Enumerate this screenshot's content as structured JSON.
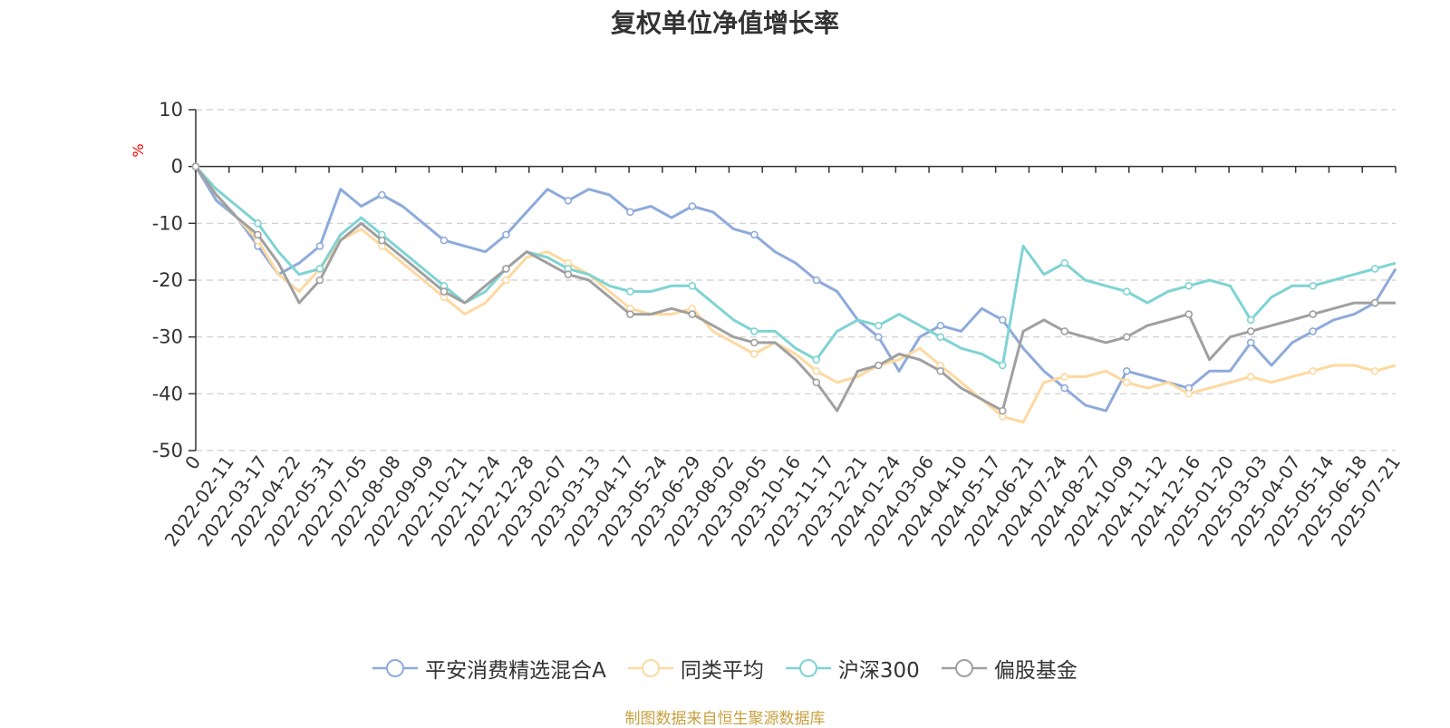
{
  "chart_data": {
    "type": "line",
    "title": "复权单位净值增长率",
    "ylabel": "%",
    "ylim": [
      -50,
      10
    ],
    "yticks": [
      10,
      0,
      -10,
      -20,
      -30,
      -40,
      -50
    ],
    "grid": true,
    "legend_position": "bottom",
    "x_ticks": [
      "0",
      "2022-02-11",
      "2022-03-17",
      "2022-04-22",
      "2022-05-31",
      "2022-07-05",
      "2022-08-08",
      "2022-09-09",
      "2022-10-21",
      "2022-11-24",
      "2022-12-28",
      "2023-02-07",
      "2023-03-13",
      "2023-04-17",
      "2023-05-24",
      "2023-06-29",
      "2023-08-02",
      "2023-09-05",
      "2023-10-16",
      "2023-11-17",
      "2023-12-21",
      "2024-01-24",
      "2024-03-06",
      "2024-04-10",
      "2024-05-17",
      "2024-06-21",
      "2024-07-24",
      "2024-08-27",
      "2024-10-09",
      "2024-11-12",
      "2024-12-16",
      "2025-01-20",
      "2025-03-03",
      "2025-04-07",
      "2025-05-14",
      "2025-06-18",
      "2025-07-21"
    ],
    "series": [
      {
        "name": "平安消费精选混合A",
        "color": "#8eaadb",
        "values": [
          0,
          -6,
          -9,
          -14,
          -19,
          -17,
          -14,
          -4,
          -7,
          -5,
          -7,
          -10,
          -13,
          -14,
          -15,
          -12,
          -8,
          -4,
          -6,
          -4,
          -5,
          -8,
          -7,
          -9,
          -7,
          -8,
          -11,
          -12,
          -15,
          -17,
          -20,
          -22,
          -27,
          -30,
          -36,
          -30,
          -28,
          -29,
          -25,
          -27,
          -32,
          -36,
          -39,
          -42,
          -43,
          -36,
          -37,
          -38,
          -39,
          -36,
          -36,
          -31,
          -35,
          -31,
          -29,
          -27,
          -26,
          -24,
          -18
        ]
      },
      {
        "name": "同类平均",
        "color": "#fdd9a0",
        "values": [
          0,
          -5,
          -9,
          -13,
          -19,
          -22,
          -18,
          -13,
          -11,
          -14,
          -17,
          -20,
          -23,
          -26,
          -24,
          -20,
          -16,
          -15,
          -17,
          -19,
          -22,
          -25,
          -26,
          -26,
          -25,
          -29,
          -31,
          -33,
          -31,
          -33,
          -36,
          -38,
          -37,
          -35,
          -34,
          -32,
          -35,
          -38,
          -41,
          -44,
          -45,
          -38,
          -37,
          -37,
          -36,
          -38,
          -39,
          -38,
          -40,
          -39,
          -38,
          -37,
          -38,
          -37,
          -36,
          -35,
          -35,
          -36,
          -35
        ]
      },
      {
        "name": "沪深300",
        "color": "#7fd3d3",
        "values": [
          0,
          -4,
          -7,
          -10,
          -15,
          -19,
          -18,
          -12,
          -9,
          -12,
          -15,
          -18,
          -21,
          -24,
          -22,
          -18,
          -15,
          -16,
          -18,
          -19,
          -21,
          -22,
          -22,
          -21,
          -21,
          -24,
          -27,
          -29,
          -29,
          -32,
          -34,
          -29,
          -27,
          -28,
          -26,
          -28,
          -30,
          -32,
          -33,
          -35,
          -14,
          -19,
          -17,
          -20,
          -21,
          -22,
          -24,
          -22,
          -21,
          -20,
          -21,
          -27,
          -23,
          -21,
          -21,
          -20,
          -19,
          -18,
          -17
        ]
      },
      {
        "name": "偏股基金",
        "color": "#a0a0a0",
        "values": [
          0,
          -5,
          -9,
          -12,
          -17,
          -24,
          -20,
          -13,
          -10,
          -13,
          -16,
          -19,
          -22,
          -24,
          -21,
          -18,
          -15,
          -17,
          -19,
          -20,
          -23,
          -26,
          -26,
          -25,
          -26,
          -28,
          -30,
          -31,
          -31,
          -34,
          -38,
          -43,
          -36,
          -35,
          -33,
          -34,
          -36,
          -39,
          -41,
          -43,
          -29,
          -27,
          -29,
          -30,
          -31,
          -30,
          -28,
          -27,
          -26,
          -34,
          -30,
          -29,
          -28,
          -27,
          -26,
          -25,
          -24,
          -24,
          -24
        ]
      }
    ]
  },
  "source_note": "制图数据来自恒生聚源数据库"
}
